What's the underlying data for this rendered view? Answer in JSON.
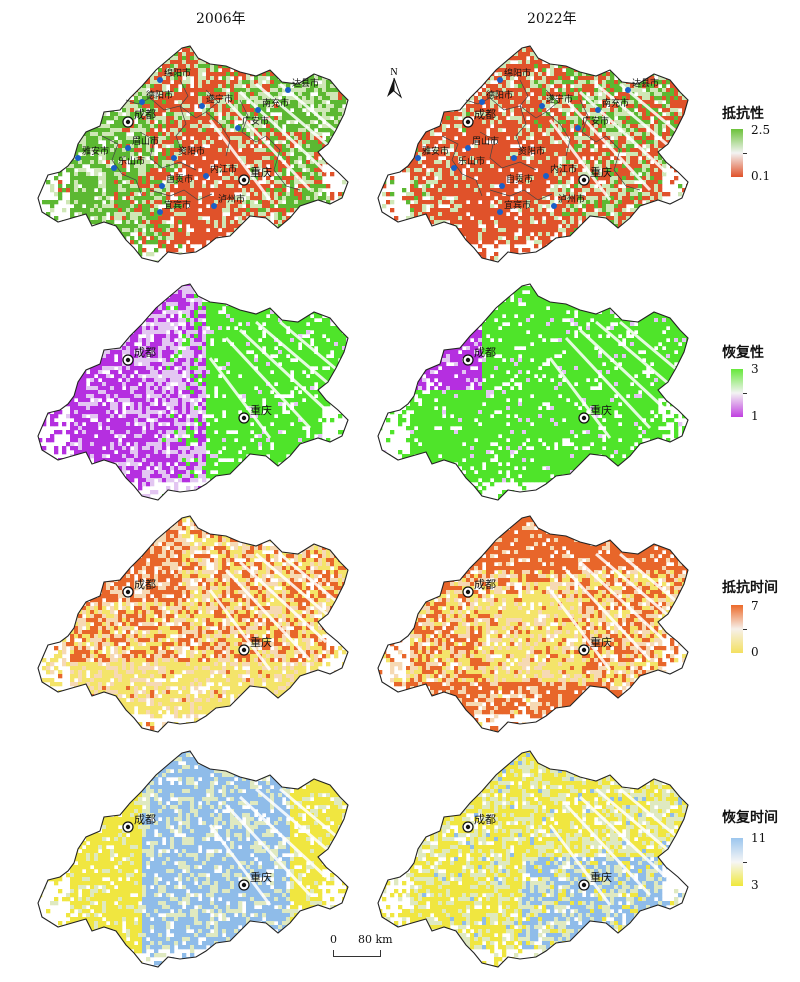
{
  "columns": [
    "2006年",
    "2022年"
  ],
  "legends": [
    {
      "title": "抵抗性",
      "max": "2.5",
      "min": "0.1",
      "colors": [
        "#6cc23a",
        "#f3f3f3",
        "#e0522a"
      ]
    },
    {
      "title": "恢复性",
      "max": "3",
      "min": "1",
      "colors": [
        "#66e83a",
        "#f3f3f3",
        "#c040e0"
      ]
    },
    {
      "title": "抵抗时间",
      "max": "7",
      "min": "0",
      "colors": [
        "#ec6a2a",
        "#f6f0ea",
        "#f4e060"
      ]
    },
    {
      "title": "恢复时间",
      "max": "11",
      "min": "3",
      "colors": [
        "#9cc6ee",
        "#f6f6f6",
        "#f0e83a"
      ]
    }
  ],
  "cities_major": [
    "成都",
    "重庆"
  ],
  "cities_minor": [
    "绵阳市",
    "德阳市",
    "南充市",
    "达县市",
    "遂宁市",
    "广安市",
    "雅安市",
    "眉山市",
    "乐山市",
    "资阳市",
    "自贡市",
    "内江市",
    "宜宾市",
    "泸州市"
  ],
  "north_label": "N",
  "scale": {
    "zero": "0",
    "distance": "80 km"
  }
}
